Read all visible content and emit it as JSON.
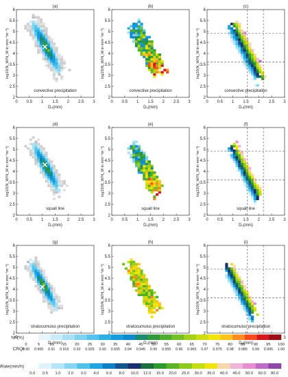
{
  "chart_data": {
    "type": "heatmap",
    "description_axes": {
      "xlabel": "D₀(mm)",
      "ylabel": "log10(N_W/N_W in mm⁻¹m⁻³)",
      "xticks": [
        "0",
        "0.5",
        "1",
        "1.5",
        "2",
        "2.5",
        "3"
      ],
      "yticks": [
        "2",
        "2.5",
        "3",
        "3.5",
        "4",
        "4.5",
        "5",
        "5.5",
        "6"
      ],
      "xlim": [
        0,
        3
      ],
      "ylim": [
        2,
        6
      ]
    },
    "panels": [
      {
        "letter": "(a)",
        "caption": "convective precipitation",
        "variable": "NF",
        "center": [
          1.15,
          4.3
        ],
        "slope": -1.3,
        "halfwidth": 0.55,
        "halflength": 1.5
      },
      {
        "letter": "(b)",
        "caption": "convective precipitation",
        "variable": "CRQI",
        "center": [
          1.35,
          4.2
        ],
        "slope": -1.3,
        "halfwidth": 0.5,
        "halflength": 1.4
      },
      {
        "letter": "(c)",
        "caption": "convective precipitation",
        "variable": "RainRate",
        "center": [
          1.5,
          4.1
        ],
        "slope": -1.4,
        "halfwidth": 0.45,
        "halflength": 1.5
      },
      {
        "letter": "(d)",
        "caption": "squall line",
        "variable": "NF",
        "center": [
          1.15,
          4.2
        ],
        "slope": -1.3,
        "halfwidth": 0.5,
        "halflength": 1.4
      },
      {
        "letter": "(e)",
        "caption": "squall line",
        "variable": "CRQI",
        "center": [
          1.3,
          4.1
        ],
        "slope": -1.3,
        "halfwidth": 0.45,
        "halflength": 1.3
      },
      {
        "letter": "(f)",
        "caption": "squall line",
        "variable": "RainRate",
        "center": [
          1.5,
          3.9
        ],
        "slope": -1.4,
        "halfwidth": 0.4,
        "halflength": 1.4
      },
      {
        "letter": "(g)",
        "caption": "stratocumulus precipitation",
        "variable": "NF",
        "center": [
          1.05,
          4.2
        ],
        "slope": -1.3,
        "halfwidth": 0.45,
        "halflength": 1.4
      },
      {
        "letter": "(h)",
        "caption": "stratocumulus precipitation",
        "variable": "CRQI",
        "center": [
          1.2,
          4.1
        ],
        "slope": -1.3,
        "halfwidth": 0.45,
        "halflength": 1.4
      },
      {
        "letter": "(i)",
        "caption": "stratocumulus precipitation",
        "variable": "RainRate",
        "center": [
          1.3,
          3.9
        ],
        "slope": -1.4,
        "halfwidth": 0.4,
        "halflength": 1.4
      }
    ],
    "reference_lines": {
      "vertical_x": [
        1.56,
        2.18
      ],
      "horizontal_y": [
        4.93,
        3.61
      ],
      "panels": [
        "(c)",
        "(f)",
        "(i)"
      ]
    },
    "marker_points": [
      {
        "panel": "(a)",
        "x": 1.1,
        "y": 4.3,
        "color": "#ffffff"
      },
      {
        "panel": "(d)",
        "x": 1.1,
        "y": 4.3,
        "color": "#ffffff"
      },
      {
        "panel": "(g)",
        "x": 1.0,
        "y": 4.1,
        "color": "#ffffff"
      }
    ],
    "colorbars": [
      {
        "label": "NF(%)",
        "ticks": [
          "0",
          "5",
          "10",
          "15",
          "20",
          "25",
          "30",
          "35",
          "40",
          "45",
          "50",
          "55",
          "60",
          "65",
          "70",
          "75",
          "80",
          "85",
          "90",
          "95",
          "100"
        ],
        "colors": [
          "#ffffff",
          "#e8f6fc",
          "#c8ecf8",
          "#a6e1f5",
          "#7fd3f0",
          "#56c3ec",
          "#2fb1e6",
          "#159ddd",
          "#0d8bd0",
          "#1b8a6f",
          "#2e9a3a",
          "#4fae2e",
          "#77c021",
          "#a3d116",
          "#cddd10",
          "#f1e40a",
          "#ffc21a",
          "#ff8a1f",
          "#f84a1f",
          "#d8171c",
          "#9c0f14"
        ]
      },
      {
        "label": "CRQI",
        "ticks": [
          "0.90",
          "0.905",
          "0.91",
          "0.915",
          "0.92",
          "0.925",
          "0.93",
          "0.935",
          "0.94",
          "0.945",
          "0.95",
          "0.955",
          "0.96",
          "0.965",
          "0.97",
          "0.975",
          "0.98",
          "0.985",
          "0.99",
          "0.995",
          "1.00"
        ],
        "colors": [
          "#ffffff",
          "#e8f6fc",
          "#c8ecf8",
          "#a6e1f5",
          "#7fd3f0",
          "#56c3ec",
          "#2fb1e6",
          "#159ddd",
          "#0d8bd0",
          "#1b8a6f",
          "#2e9a3a",
          "#4fae2e",
          "#77c021",
          "#a3d116",
          "#cddd10",
          "#f1e40a",
          "#ffc21a",
          "#ff8a1f",
          "#f84a1f",
          "#d8171c",
          "#9c0f14"
        ]
      },
      {
        "label": "RainRate(mm/h)",
        "ticks": [
          "0.0",
          "0.5",
          "1.0",
          "2.0",
          "3.0",
          "4.0",
          "6.0",
          "8.0",
          "10.0",
          "12.0",
          "15.0",
          "20.0",
          "25.0",
          "30.0",
          "35.0",
          "40.0",
          "45.0",
          "50.0",
          "60.0",
          "80.0"
        ],
        "colors": [
          "#ffffff",
          "#dff3fb",
          "#b5e6f7",
          "#86d6f1",
          "#4fc1ea",
          "#1ea6df",
          "#0f7fc6",
          "#14548f",
          "#1a2f6d",
          "#1b6f3a",
          "#2c9a2d",
          "#59b526",
          "#8ccb1d",
          "#c4de13",
          "#f0e40c",
          "#f7d7ad",
          "#f0b6d8",
          "#e58fd0",
          "#c06bc8",
          "#8b4aa8"
        ]
      }
    ]
  }
}
